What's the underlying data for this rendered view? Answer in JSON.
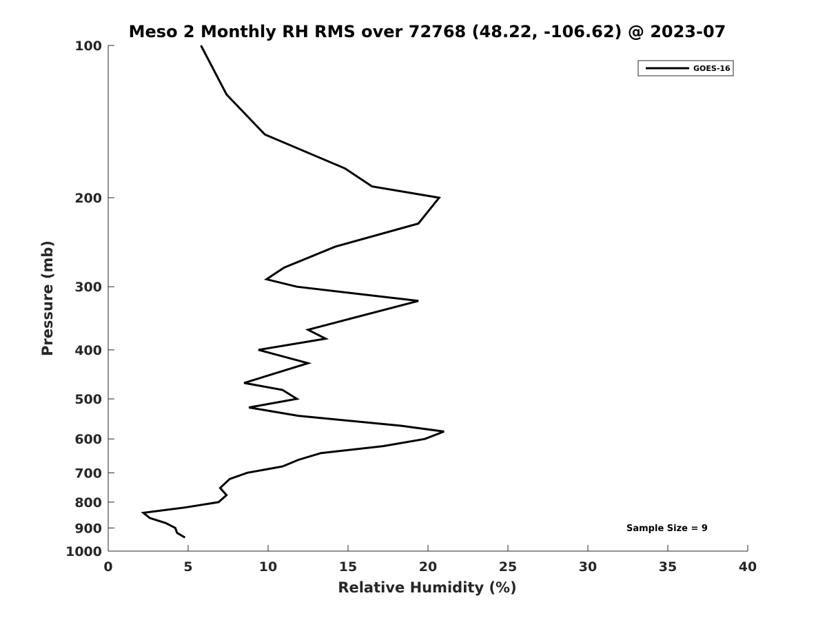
{
  "chart_data": {
    "type": "line",
    "title": "Meso 2 Monthly RH RMS over 72768 (48.22, -106.62) @ 2023-07",
    "xlabel": "Relative Humidity (%)",
    "ylabel": "Pressure (mb)",
    "xlim": [
      0,
      40
    ],
    "ylim": [
      100,
      1000
    ],
    "y_scale": "log",
    "y_reversed": true,
    "grid": false,
    "legend_position": "top-right",
    "x_ticks": [
      "0",
      "5",
      "10",
      "15",
      "20",
      "25",
      "30",
      "35",
      "40"
    ],
    "y_ticks": [
      "100",
      "200",
      "300",
      "400",
      "500",
      "600",
      "700",
      "800",
      "900",
      "1000"
    ],
    "series": [
      {
        "name": "GOES-16",
        "color": "#000000",
        "points": [
          {
            "rh": 5.8,
            "p": 100
          },
          {
            "rh": 7.4,
            "p": 125
          },
          {
            "rh": 9.8,
            "p": 150
          },
          {
            "rh": 14.8,
            "p": 175
          },
          {
            "rh": 16.5,
            "p": 190
          },
          {
            "rh": 20.7,
            "p": 200
          },
          {
            "rh": 19.4,
            "p": 225
          },
          {
            "rh": 14.2,
            "p": 250
          },
          {
            "rh": 11.0,
            "p": 275
          },
          {
            "rh": 9.9,
            "p": 290
          },
          {
            "rh": 11.8,
            "p": 300
          },
          {
            "rh": 19.4,
            "p": 320
          },
          {
            "rh": 12.5,
            "p": 365
          },
          {
            "rh": 13.6,
            "p": 380
          },
          {
            "rh": 9.4,
            "p": 400
          },
          {
            "rh": 12.5,
            "p": 425
          },
          {
            "rh": 8.5,
            "p": 465
          },
          {
            "rh": 10.9,
            "p": 480
          },
          {
            "rh": 11.8,
            "p": 500
          },
          {
            "rh": 8.8,
            "p": 520
          },
          {
            "rh": 11.9,
            "p": 540
          },
          {
            "rh": 18.3,
            "p": 565
          },
          {
            "rh": 21.0,
            "p": 580
          },
          {
            "rh": 19.8,
            "p": 600
          },
          {
            "rh": 17.2,
            "p": 620
          },
          {
            "rh": 13.3,
            "p": 640
          },
          {
            "rh": 11.9,
            "p": 660
          },
          {
            "rh": 10.9,
            "p": 680
          },
          {
            "rh": 8.7,
            "p": 700
          },
          {
            "rh": 7.6,
            "p": 720
          },
          {
            "rh": 7.0,
            "p": 750
          },
          {
            "rh": 7.4,
            "p": 775
          },
          {
            "rh": 6.9,
            "p": 800
          },
          {
            "rh": 4.8,
            "p": 820
          },
          {
            "rh": 2.2,
            "p": 840
          },
          {
            "rh": 2.6,
            "p": 860
          },
          {
            "rh": 3.6,
            "p": 880
          },
          {
            "rh": 4.2,
            "p": 900
          },
          {
            "rh": 4.3,
            "p": 920
          },
          {
            "rh": 4.8,
            "p": 940
          }
        ]
      }
    ],
    "annotation": "Sample Size = 9"
  }
}
